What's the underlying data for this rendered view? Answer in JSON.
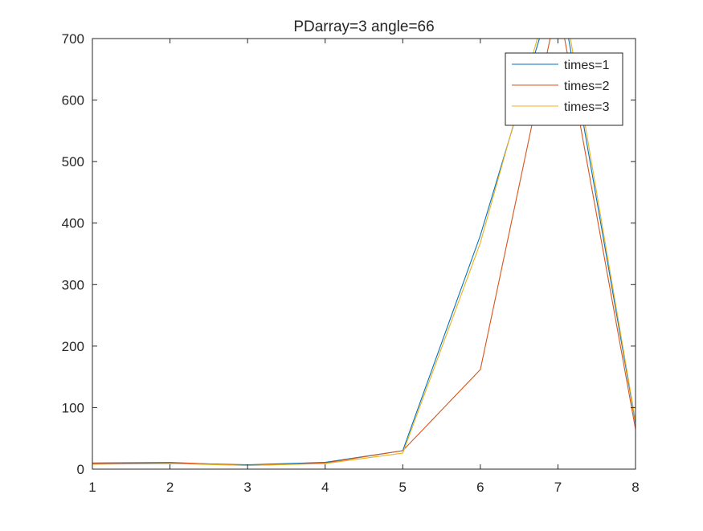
{
  "chart_data": {
    "type": "line",
    "title": "PDarray=3  angle=66",
    "xlabel": "",
    "ylabel": "",
    "xlim": [
      1,
      8
    ],
    "ylim": [
      0,
      700
    ],
    "x_ticks": [
      "1",
      "2",
      "3",
      "4",
      "5",
      "6",
      "7",
      "8"
    ],
    "y_ticks": [
      "0",
      "100",
      "200",
      "300",
      "400",
      "500",
      "600",
      "700"
    ],
    "x": [
      1,
      2,
      3,
      4,
      5,
      6,
      7,
      8
    ],
    "series": [
      {
        "name": "times=1",
        "color": "#0072bd",
        "values": [
          9,
          10,
          7,
          11,
          30,
          380,
          800,
          75
        ]
      },
      {
        "name": "times=2",
        "color": "#d95319",
        "values": [
          10,
          11,
          6,
          10,
          30,
          162,
          760,
          65
        ]
      },
      {
        "name": "times=3",
        "color": "#edb120",
        "values": [
          8,
          9,
          6,
          9,
          26,
          368,
          820,
          78
        ]
      }
    ],
    "grid": false,
    "legend_position": "top-right"
  }
}
